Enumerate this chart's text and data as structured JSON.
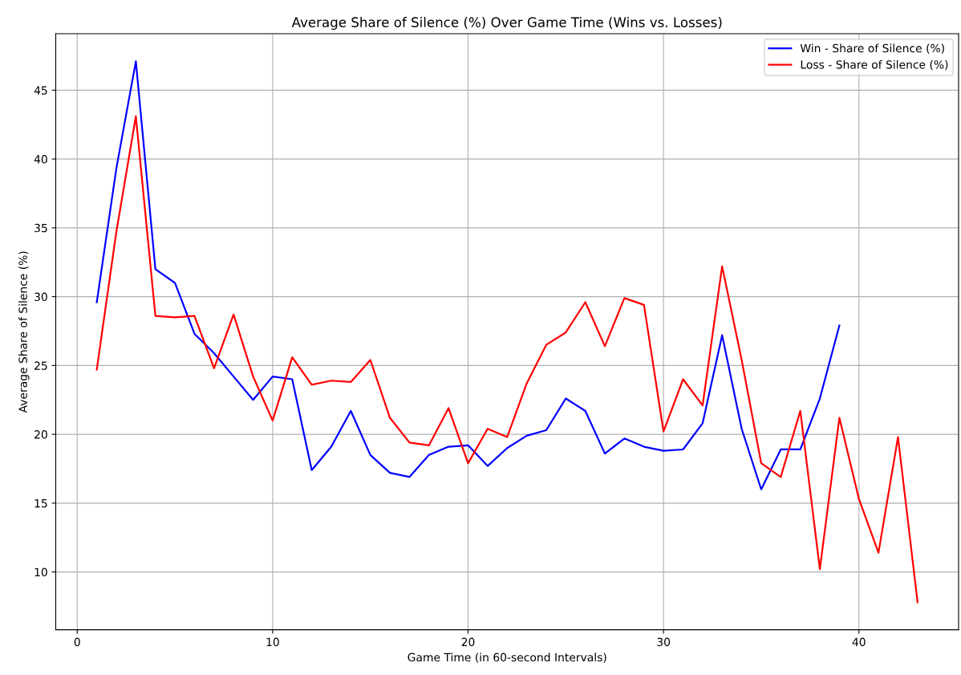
{
  "chart_data": {
    "type": "line",
    "title": "Average Share of Silence (%) Over Game Time (Wins vs. Losses)",
    "xlabel": "Game Time (in 60-second Intervals)",
    "ylabel": "Average Share of Silence (%)",
    "series": [
      {
        "name": "Win - Share of Silence (%)",
        "color": "#0000ff",
        "x": [
          1,
          2,
          3,
          4,
          5,
          6,
          7,
          8,
          9,
          10,
          11,
          12,
          13,
          14,
          15,
          16,
          17,
          18,
          19,
          20,
          21,
          22,
          23,
          24,
          25,
          26,
          27,
          28,
          29,
          30,
          31,
          32,
          33,
          34,
          35,
          36,
          37,
          38,
          39
        ],
        "values": [
          29.6,
          39.3,
          47.1,
          32.0,
          31.0,
          27.3,
          25.9,
          24.2,
          22.5,
          24.2,
          24.0,
          17.4,
          19.1,
          21.7,
          18.5,
          17.2,
          16.9,
          18.5,
          19.1,
          19.2,
          17.7,
          19.0,
          19.9,
          20.3,
          22.6,
          21.7,
          18.6,
          19.7,
          19.1,
          18.8,
          18.9,
          20.8,
          27.2,
          20.4,
          16.0,
          18.9,
          18.9,
          22.6,
          27.9
        ]
      },
      {
        "name": "Loss - Share of Silence (%)",
        "color": "#ff0000",
        "x": [
          1,
          2,
          3,
          4,
          5,
          6,
          7,
          8,
          9,
          10,
          11,
          12,
          13,
          14,
          15,
          16,
          17,
          18,
          19,
          20,
          21,
          22,
          23,
          24,
          25,
          26,
          27,
          28,
          29,
          30,
          31,
          32,
          33,
          34,
          35,
          36,
          37,
          38,
          39,
          40,
          41,
          42,
          43
        ],
        "values": [
          24.7,
          34.7,
          43.1,
          28.6,
          28.5,
          28.6,
          24.8,
          28.7,
          24.2,
          21.0,
          25.6,
          23.6,
          23.9,
          23.8,
          25.4,
          21.2,
          19.4,
          19.2,
          21.9,
          17.9,
          20.4,
          19.8,
          23.7,
          26.5,
          27.4,
          29.6,
          26.4,
          29.9,
          29.4,
          20.2,
          24.0,
          22.1,
          32.2,
          25.4,
          17.9,
          16.9,
          21.7,
          10.2,
          21.2,
          15.3,
          11.4,
          19.8,
          7.8
        ]
      }
    ],
    "xlim": [
      -1.1,
      45.1
    ],
    "ylim": [
      5.8,
      49.1
    ],
    "xticks": [
      0,
      10,
      20,
      30,
      40
    ],
    "yticks": [
      10,
      15,
      20,
      25,
      30,
      35,
      40,
      45
    ],
    "grid": true,
    "legend": "top right",
    "marker": "none",
    "line_style": "solid"
  }
}
